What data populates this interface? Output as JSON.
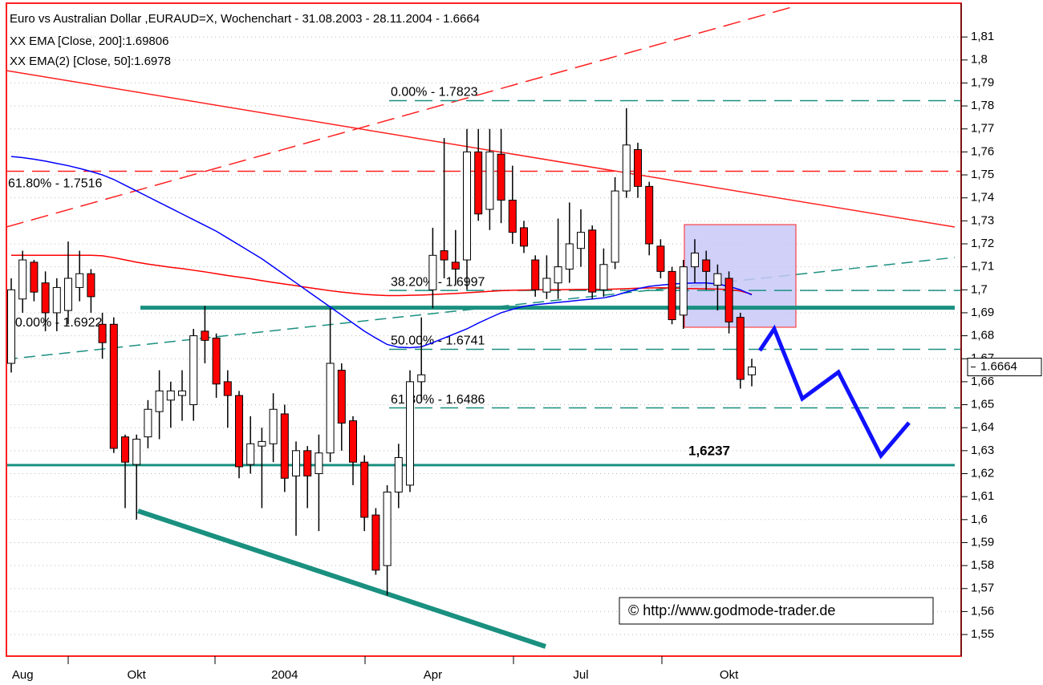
{
  "chart_data": {
    "type": "candlestick",
    "title": "Euro vs Australian Dollar ,EURAUD=X, Wochenchart - 31.08.2003 - 28.11.2004 - 1.6664",
    "legend": [
      {
        "label": "XX EMA [Close, 200]:1.69806",
        "color": "#ff0000"
      },
      {
        "label": "XX EMA(2) [Close, 50]:1.6978",
        "color": "#0000ff"
      }
    ],
    "categories": [
      null,
      "Aug",
      null,
      null,
      null,
      null,
      null,
      null,
      null,
      null,
      null,
      "Okt",
      null,
      null,
      null,
      null,
      null,
      null,
      null,
      null,
      null,
      null,
      null,
      null,
      "2004",
      null,
      null,
      null,
      null,
      null,
      null,
      null,
      null,
      null,
      null,
      null,
      null,
      "Apr",
      null,
      null,
      null,
      null,
      null,
      null,
      null,
      null,
      null,
      null,
      null,
      null,
      "Jul",
      null,
      null,
      null,
      null,
      null,
      null,
      null,
      null,
      null,
      null,
      null,
      null,
      "Okt",
      null,
      null
    ],
    "open": [
      1.668,
      1.696,
      1.712,
      1.703,
      1.69,
      1.691,
      1.701,
      1.707,
      1.685,
      1.685,
      1.636,
      1.624,
      1.636,
      1.647,
      1.652,
      1.654,
      1.65,
      1.682,
      1.679,
      1.66,
      1.654,
      1.624,
      1.632,
      1.633,
      1.646,
      1.619,
      1.63,
      1.62,
      1.629,
      1.665,
      1.643,
      1.625,
      1.602,
      1.58,
      1.612,
      1.615,
      1.66,
      1.7,
      1.717,
      1.712,
      1.713,
      1.76,
      1.735,
      1.759,
      1.739,
      1.727,
      1.713,
      1.699,
      1.703,
      1.709,
      1.718,
      1.726,
      1.7,
      1.712,
      1.743,
      1.761,
      1.745,
      1.719,
      1.708,
      1.689,
      1.71,
      1.713,
      1.702,
      1.705,
      1.688,
      1.663
    ],
    "high": [
      1.705,
      1.717,
      1.713,
      1.708,
      1.705,
      1.721,
      1.717,
      1.709,
      1.69,
      1.688,
      1.637,
      1.637,
      1.652,
      1.665,
      1.66,
      1.665,
      1.683,
      1.693,
      1.681,
      1.665,
      1.656,
      1.645,
      1.64,
      1.655,
      1.65,
      1.634,
      1.632,
      1.637,
      1.692,
      1.668,
      1.645,
      1.628,
      1.605,
      1.615,
      1.633,
      1.665,
      1.688,
      1.727,
      1.766,
      1.726,
      1.77,
      1.77,
      1.77,
      1.77,
      1.754,
      1.73,
      1.715,
      1.715,
      1.731,
      1.738,
      1.735,
      1.728,
      1.718,
      1.749,
      1.779,
      1.764,
      1.747,
      1.722,
      1.71,
      1.713,
      1.722,
      1.717,
      1.711,
      1.708,
      1.69,
      1.67
    ],
    "low": [
      1.664,
      1.69,
      1.695,
      1.682,
      1.682,
      1.685,
      1.695,
      1.69,
      1.67,
      1.629,
      1.605,
      1.6,
      1.631,
      1.635,
      1.64,
      1.643,
      1.643,
      1.668,
      1.653,
      1.64,
      1.618,
      1.62,
      1.605,
      1.625,
      1.612,
      1.593,
      1.605,
      1.595,
      1.625,
      1.63,
      1.615,
      1.595,
      1.576,
      1.567,
      1.605,
      1.612,
      1.652,
      1.692,
      1.705,
      1.702,
      1.7,
      1.73,
      1.726,
      1.729,
      1.72,
      1.716,
      1.697,
      1.696,
      1.696,
      1.703,
      1.71,
      1.696,
      1.697,
      1.709,
      1.74,
      1.74,
      1.715,
      1.705,
      1.685,
      1.683,
      1.703,
      1.7,
      1.691,
      1.681,
      1.657,
      1.658
    ],
    "close": [
      1.7,
      1.713,
      1.699,
      1.69,
      1.701,
      1.705,
      1.707,
      1.697,
      1.677,
      1.631,
      1.625,
      1.635,
      1.648,
      1.656,
      1.656,
      1.656,
      1.68,
      1.678,
      1.659,
      1.654,
      1.623,
      1.633,
      1.634,
      1.648,
      1.618,
      1.63,
      1.619,
      1.629,
      1.668,
      1.642,
      1.625,
      1.601,
      1.578,
      1.612,
      1.627,
      1.66,
      1.663,
      1.715,
      1.713,
      1.709,
      1.76,
      1.733,
      1.76,
      1.739,
      1.725,
      1.719,
      1.7,
      1.705,
      1.71,
      1.72,
      1.725,
      1.699,
      1.711,
      1.743,
      1.763,
      1.745,
      1.72,
      1.708,
      1.687,
      1.71,
      1.716,
      1.708,
      1.707,
      1.686,
      1.661,
      1.6664
    ],
    "up_color": "#ffffff",
    "down_color": "#ff0000",
    "ema200": [
      1.715,
      1.715,
      1.715,
      1.715,
      1.715,
      1.715,
      1.715,
      1.715,
      1.7148,
      1.714,
      1.713,
      1.712,
      1.7112,
      1.7105,
      1.7098,
      1.7092,
      1.7085,
      1.7078,
      1.707,
      1.7062,
      1.7055,
      1.7048,
      1.704,
      1.7032,
      1.7025,
      1.7018,
      1.701,
      1.7003,
      1.6996,
      1.699,
      1.6985,
      1.698,
      1.6977,
      1.6975,
      1.6975,
      1.6976,
      1.6977,
      1.6979,
      1.6982,
      1.6984,
      1.6987,
      1.699,
      1.6993,
      1.6996,
      1.6998,
      1.6999,
      1.7,
      1.7,
      1.7,
      1.7001,
      1.7002,
      1.7002,
      1.7002,
      1.7003,
      1.7005,
      1.7007,
      1.7008,
      1.7009,
      1.7008,
      1.7006,
      1.7005,
      1.7004,
      1.7003,
      1.7001,
      1.6995,
      1.69806
    ],
    "ema50": [
      1.758,
      1.7575,
      1.7568,
      1.756,
      1.755,
      1.754,
      1.7528,
      1.7515,
      1.75,
      1.748,
      1.7455,
      1.743,
      1.7405,
      1.738,
      1.7355,
      1.733,
      1.7305,
      1.728,
      1.7255,
      1.7225,
      1.7195,
      1.7165,
      1.7135,
      1.71,
      1.7065,
      1.703,
      1.6995,
      1.696,
      1.6925,
      1.689,
      1.6855,
      1.682,
      1.679,
      1.6762,
      1.675,
      1.6748,
      1.6752,
      1.677,
      1.679,
      1.681,
      1.683,
      1.6855,
      1.6878,
      1.69,
      1.6915,
      1.6928,
      1.6935,
      1.694,
      1.6945,
      1.695,
      1.6955,
      1.696,
      1.6965,
      1.6975,
      1.699,
      1.7005,
      1.7015,
      1.702,
      1.7025,
      1.7028,
      1.703,
      1.703,
      1.7025,
      1.7015,
      1.7,
      1.6978
    ],
    "fib_levels": [
      {
        "value": 1.7823,
        "label": "0.00% - 1.7823"
      },
      {
        "value": 1.6997,
        "label": "38.20% - 1.6997"
      },
      {
        "value": 1.6741,
        "label": "50.00% - 1.6741"
      },
      {
        "value": 1.6486,
        "label": "61.80% - 1.6486"
      }
    ],
    "fib_color": "#1a9080",
    "red_level": {
      "value": 1.7516,
      "label": "61.80% - 1.7516"
    },
    "mid_level": {
      "value": 1.6922,
      "label": "50.00% - 1.6922"
    },
    "target_level": {
      "value": 1.6237,
      "label": "1,6237"
    },
    "last_price": 1.6664,
    "watermark": "© http://www.godmode-trader.de",
    "ylim": [
      1.5406,
      1.8247
    ],
    "yticks": [
      {
        "value": 1.55,
        "label": "1,55"
      },
      {
        "value": 1.56,
        "label": "1,56"
      },
      {
        "value": 1.57,
        "label": "1,57"
      },
      {
        "value": 1.58,
        "label": "1,58"
      },
      {
        "value": 1.59,
        "label": "1,59"
      },
      {
        "value": 1.6,
        "label": "1,6"
      },
      {
        "value": 1.61,
        "label": "1,61"
      },
      {
        "value": 1.62,
        "label": "1,62"
      },
      {
        "value": 1.63,
        "label": "1,63"
      },
      {
        "value": 1.64,
        "label": "1,64"
      },
      {
        "value": 1.65,
        "label": "1,65"
      },
      {
        "value": 1.66,
        "label": "1,66"
      },
      {
        "value": 1.67,
        "label": "1,67"
      },
      {
        "value": 1.68,
        "label": "1,68"
      },
      {
        "value": 1.69,
        "label": "1,69"
      },
      {
        "value": 1.7,
        "label": "1,7"
      },
      {
        "value": 1.71,
        "label": "1,71"
      },
      {
        "value": 1.72,
        "label": "1,72"
      },
      {
        "value": 1.73,
        "label": "1,73"
      },
      {
        "value": 1.74,
        "label": "1,74"
      },
      {
        "value": 1.75,
        "label": "1,75"
      },
      {
        "value": 1.76,
        "label": "1,76"
      },
      {
        "value": 1.77,
        "label": "1,77"
      },
      {
        "value": 1.78,
        "label": "1,78"
      },
      {
        "value": 1.79,
        "label": "1,79"
      },
      {
        "value": 1.8,
        "label": "1,8"
      },
      {
        "value": 1.81,
        "label": "1,81"
      }
    ],
    "grid": true
  }
}
